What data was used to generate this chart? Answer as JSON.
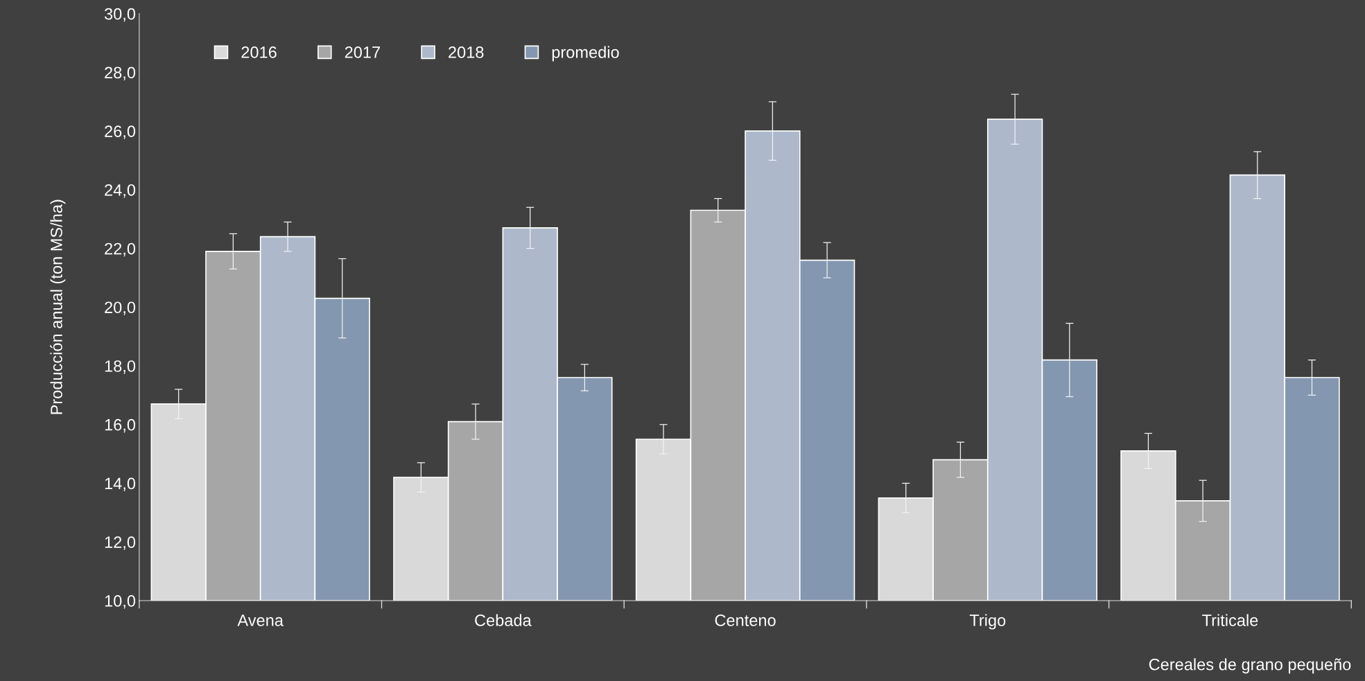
{
  "chart_data": {
    "type": "bar",
    "xlabel": "Cereales de grano pequeño",
    "ylabel": "Producción anual (ton MS/ha)",
    "categories": [
      "Avena",
      "Cebada",
      "Centeno",
      "Trigo",
      "Triticale"
    ],
    "series": [
      {
        "name": "2016",
        "color": "#d9d9d9",
        "values": [
          16.7,
          14.2,
          15.5,
          13.5,
          15.1
        ],
        "errors": [
          0.5,
          0.5,
          0.5,
          0.5,
          0.6
        ]
      },
      {
        "name": "2017",
        "color": "#a6a6a6",
        "values": [
          21.9,
          16.1,
          23.3,
          14.8,
          13.4
        ],
        "errors": [
          0.6,
          0.6,
          0.4,
          0.6,
          0.7
        ]
      },
      {
        "name": "2018",
        "color": "#adb9ca",
        "values": [
          22.4,
          22.7,
          26.0,
          26.4,
          24.5
        ],
        "errors": [
          0.5,
          0.7,
          1.0,
          0.85,
          0.8
        ]
      },
      {
        "name": "promedio",
        "color": "#8497b0",
        "values": [
          20.3,
          17.6,
          21.6,
          18.2,
          17.6
        ],
        "errors": [
          1.35,
          0.45,
          0.6,
          1.25,
          0.6
        ]
      }
    ],
    "ylim": [
      10,
      30
    ],
    "yticks": [
      {
        "value": 10,
        "label": "10,0"
      },
      {
        "value": 12,
        "label": "12,0"
      },
      {
        "value": 14,
        "label": "14,0"
      },
      {
        "value": 16,
        "label": "16,0"
      },
      {
        "value": 18,
        "label": "18,0"
      },
      {
        "value": 20,
        "label": "20,0"
      },
      {
        "value": 22,
        "label": "22,0"
      },
      {
        "value": 24,
        "label": "24,0"
      },
      {
        "value": 26,
        "label": "26,0"
      },
      {
        "value": 28,
        "label": "28,0"
      },
      {
        "value": 30,
        "label": "30,0"
      }
    ],
    "grid": false,
    "legend": "top left"
  }
}
